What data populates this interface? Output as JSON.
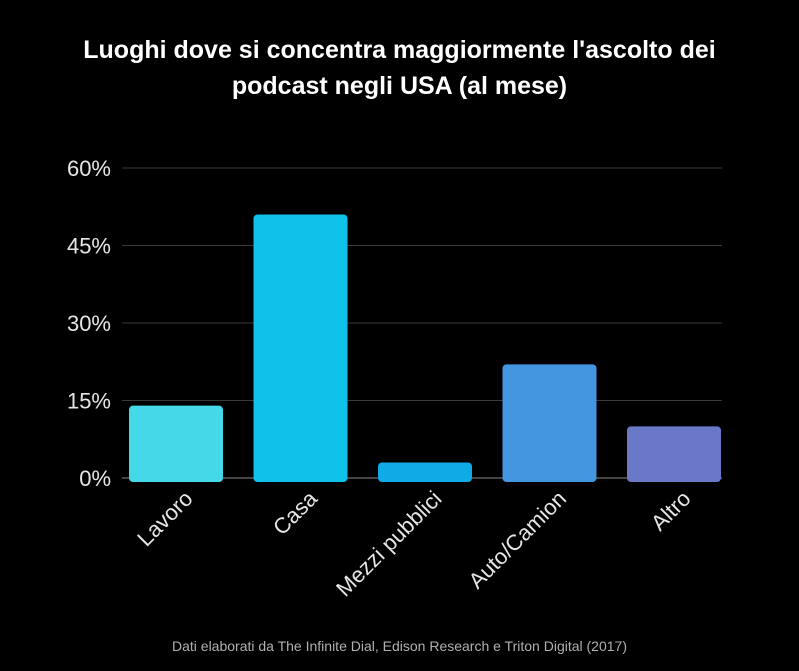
{
  "chart_data": {
    "type": "bar",
    "title_lines": [
      "Luoghi dove si concentra maggiormente l'ascolto dei",
      "podcast negli USA (al mese)"
    ],
    "categories": [
      "Lavoro",
      "Casa",
      "Mezzi pubblici",
      "Auto/Camion",
      "Altro"
    ],
    "values": [
      14,
      51,
      3,
      22,
      10
    ],
    "colors": [
      "#45d8e8",
      "#0ec2ea",
      "#10aae6",
      "#4496e0",
      "#6a78c8"
    ],
    "ylim": [
      0,
      60
    ],
    "yticks": [
      0,
      15,
      30,
      45,
      60
    ],
    "ytick_labels": [
      "0%",
      "15%",
      "30%",
      "45%",
      "60%"
    ],
    "grid": true,
    "xlabel": "",
    "ylabel": ""
  },
  "footer": {
    "source": "Dati elaborati da The Infinite Dial, Edison Research e Triton Digital (2017)"
  }
}
